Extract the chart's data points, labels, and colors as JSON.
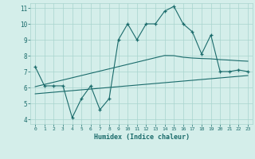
{
  "xlabel": "Humidex (Indice chaleur)",
  "x": [
    0,
    1,
    2,
    3,
    4,
    5,
    6,
    7,
    8,
    9,
    10,
    11,
    12,
    13,
    14,
    15,
    16,
    17,
    18,
    19,
    20,
    21,
    22,
    23
  ],
  "y_main": [
    7.3,
    6.1,
    6.1,
    6.1,
    4.1,
    5.3,
    6.1,
    4.6,
    5.3,
    9.0,
    10.0,
    9.0,
    10.0,
    10.0,
    10.8,
    11.1,
    10.0,
    9.5,
    8.1,
    9.3,
    7.0,
    7.0,
    7.1,
    7.0
  ],
  "y_upper": [
    6.05,
    6.19,
    6.33,
    6.47,
    6.61,
    6.75,
    6.89,
    7.03,
    7.17,
    7.31,
    7.45,
    7.59,
    7.73,
    7.87,
    8.01,
    8.0,
    7.9,
    7.85,
    7.82,
    7.8,
    7.75,
    7.72,
    7.68,
    7.65
  ],
  "y_lower": [
    5.6,
    5.65,
    5.7,
    5.75,
    5.8,
    5.85,
    5.9,
    5.95,
    6.0,
    6.05,
    6.1,
    6.15,
    6.2,
    6.25,
    6.3,
    6.35,
    6.4,
    6.45,
    6.5,
    6.55,
    6.6,
    6.65,
    6.7,
    6.75
  ],
  "line_color": "#1a6b6b",
  "bg_color": "#d4eeea",
  "grid_color": "#a8d4ce",
  "ylim": [
    3.7,
    11.3
  ],
  "xlim": [
    -0.5,
    23.5
  ],
  "yticks": [
    4,
    5,
    6,
    7,
    8,
    9,
    10,
    11
  ],
  "xticks": [
    0,
    1,
    2,
    3,
    4,
    5,
    6,
    7,
    8,
    9,
    10,
    11,
    12,
    13,
    14,
    15,
    16,
    17,
    18,
    19,
    20,
    21,
    22,
    23
  ]
}
